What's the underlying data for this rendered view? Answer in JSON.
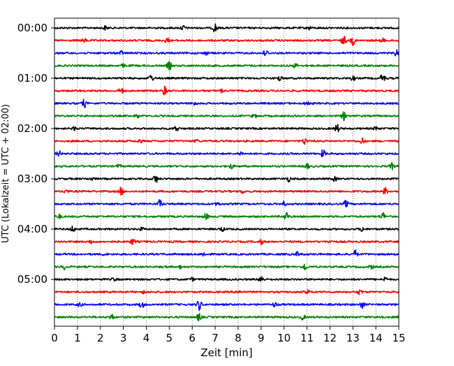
{
  "chart_data": {
    "type": "line",
    "title": "",
    "xlabel": "Zeit  [min]",
    "ylabel": "UTC (Lokalzeit = UTC + 02:00)",
    "xlim": [
      0,
      15
    ],
    "x_ticks": [
      "0",
      "1",
      "2",
      "3",
      "4",
      "5",
      "6",
      "7",
      "8",
      "9",
      "10",
      "11",
      "12",
      "13",
      "14",
      "15"
    ],
    "grid": "x-dotted",
    "row_interval_minutes": 15,
    "row_labels": [
      {
        "row": 0,
        "text": "00:00"
      },
      {
        "row": 4,
        "text": "01:00"
      },
      {
        "row": 8,
        "text": "02:00"
      },
      {
        "row": 12,
        "text": "03:00"
      },
      {
        "row": 16,
        "text": "04:00"
      },
      {
        "row": 20,
        "text": "05:00"
      }
    ],
    "colors": [
      "#000000",
      "#ff0000",
      "#0000ff",
      "#008000"
    ],
    "series": [
      {
        "start": "00:00",
        "color_index": 0,
        "events": [
          [
            7.0,
            1.0
          ],
          [
            5.6,
            0.5
          ],
          [
            2.2,
            0.4
          ],
          [
            11.1,
            0.35
          ]
        ]
      },
      {
        "start": "00:15",
        "color_index": 1,
        "events": [
          [
            12.6,
            1.0
          ],
          [
            13.0,
            0.9
          ],
          [
            4.9,
            0.55
          ],
          [
            1.3,
            0.35
          ],
          [
            14.3,
            0.4
          ]
        ]
      },
      {
        "start": "00:30",
        "color_index": 2,
        "events": [
          [
            9.2,
            0.8
          ],
          [
            14.9,
            0.7
          ],
          [
            2.9,
            0.4
          ],
          [
            6.6,
            0.35
          ]
        ]
      },
      {
        "start": "00:45",
        "color_index": 3,
        "events": [
          [
            5.0,
            0.9
          ],
          [
            10.5,
            0.45
          ],
          [
            3.0,
            0.3
          ]
        ]
      },
      {
        "start": "01:00",
        "color_index": 0,
        "events": [
          [
            14.3,
            1.1
          ],
          [
            4.2,
            0.8
          ],
          [
            9.8,
            0.5
          ],
          [
            13.0,
            0.45
          ]
        ]
      },
      {
        "start": "01:15",
        "color_index": 1,
        "events": [
          [
            4.8,
            0.9
          ],
          [
            2.9,
            0.75
          ],
          [
            7.3,
            0.35
          ]
        ]
      },
      {
        "start": "01:30",
        "color_index": 2,
        "events": [
          [
            1.3,
            0.85
          ],
          [
            11.0,
            0.5
          ],
          [
            6.1,
            0.35
          ]
        ]
      },
      {
        "start": "01:45",
        "color_index": 3,
        "events": [
          [
            12.6,
            0.85
          ],
          [
            3.6,
            0.4
          ],
          [
            8.7,
            0.35
          ]
        ]
      },
      {
        "start": "02:00",
        "color_index": 0,
        "events": [
          [
            12.3,
            0.95
          ],
          [
            5.3,
            0.7
          ],
          [
            0.9,
            0.45
          ],
          [
            14.0,
            0.4
          ]
        ]
      },
      {
        "start": "02:15",
        "color_index": 1,
        "events": [
          [
            10.9,
            0.7
          ],
          [
            13.4,
            0.65
          ],
          [
            3.7,
            0.4
          ],
          [
            6.2,
            0.3
          ]
        ]
      },
      {
        "start": "02:30",
        "color_index": 2,
        "events": [
          [
            11.7,
            0.8
          ],
          [
            0.2,
            0.55
          ],
          [
            8.1,
            0.4
          ]
        ]
      },
      {
        "start": "02:45",
        "color_index": 3,
        "events": [
          [
            11.0,
            0.6
          ],
          [
            7.7,
            0.5
          ],
          [
            14.7,
            0.65
          ],
          [
            2.8,
            0.35
          ]
        ]
      },
      {
        "start": "03:00",
        "color_index": 0,
        "events": [
          [
            4.4,
            0.9
          ],
          [
            10.2,
            0.55
          ],
          [
            12.2,
            0.45
          ],
          [
            1.6,
            0.35
          ]
        ]
      },
      {
        "start": "03:15",
        "color_index": 1,
        "events": [
          [
            2.9,
            0.85
          ],
          [
            14.4,
            0.75
          ],
          [
            0.5,
            0.45
          ],
          [
            8.2,
            0.35
          ]
        ]
      },
      {
        "start": "03:30",
        "color_index": 2,
        "events": [
          [
            4.6,
            0.9
          ],
          [
            12.7,
            0.7
          ],
          [
            10.0,
            0.5
          ],
          [
            7.1,
            0.3
          ]
        ]
      },
      {
        "start": "03:45",
        "color_index": 3,
        "events": [
          [
            10.1,
            1.0
          ],
          [
            14.3,
            0.9
          ],
          [
            6.6,
            0.7
          ],
          [
            0.2,
            0.4
          ]
        ]
      },
      {
        "start": "04:00",
        "color_index": 0,
        "events": [
          [
            0.8,
            0.6
          ],
          [
            13.4,
            0.5
          ],
          [
            7.3,
            0.45
          ],
          [
            3.8,
            0.3
          ]
        ]
      },
      {
        "start": "04:15",
        "color_index": 1,
        "events": [
          [
            3.4,
            0.65
          ],
          [
            9.0,
            0.5
          ],
          [
            1.6,
            0.4
          ],
          [
            12.0,
            0.3
          ]
        ]
      },
      {
        "start": "04:30",
        "color_index": 2,
        "events": [
          [
            13.1,
            0.85
          ],
          [
            6.5,
            0.45
          ],
          [
            10.6,
            0.5
          ],
          [
            2.2,
            0.3
          ]
        ]
      },
      {
        "start": "04:45",
        "color_index": 3,
        "events": [
          [
            10.9,
            0.8
          ],
          [
            0.4,
            0.55
          ],
          [
            13.8,
            0.45
          ],
          [
            5.5,
            0.35
          ]
        ]
      },
      {
        "start": "05:00",
        "color_index": 0,
        "events": [
          [
            9.0,
            0.9
          ],
          [
            14.4,
            0.5
          ],
          [
            2.6,
            0.35
          ],
          [
            6.0,
            0.3
          ]
        ]
      },
      {
        "start": "05:15",
        "color_index": 1,
        "events": [
          [
            11.0,
            0.6
          ],
          [
            13.3,
            0.55
          ],
          [
            8.0,
            0.45
          ],
          [
            3.9,
            0.3
          ]
        ]
      },
      {
        "start": "05:30",
        "color_index": 2,
        "events": [
          [
            6.3,
            1.2
          ],
          [
            3.8,
            0.75
          ],
          [
            13.4,
            0.7
          ],
          [
            9.6,
            0.5
          ],
          [
            1.1,
            0.4
          ]
        ]
      },
      {
        "start": "05:45",
        "color_index": 3,
        "events": [
          [
            6.3,
            0.85
          ],
          [
            2.5,
            0.6
          ],
          [
            10.8,
            0.55
          ],
          [
            14.2,
            0.4
          ]
        ]
      }
    ]
  }
}
